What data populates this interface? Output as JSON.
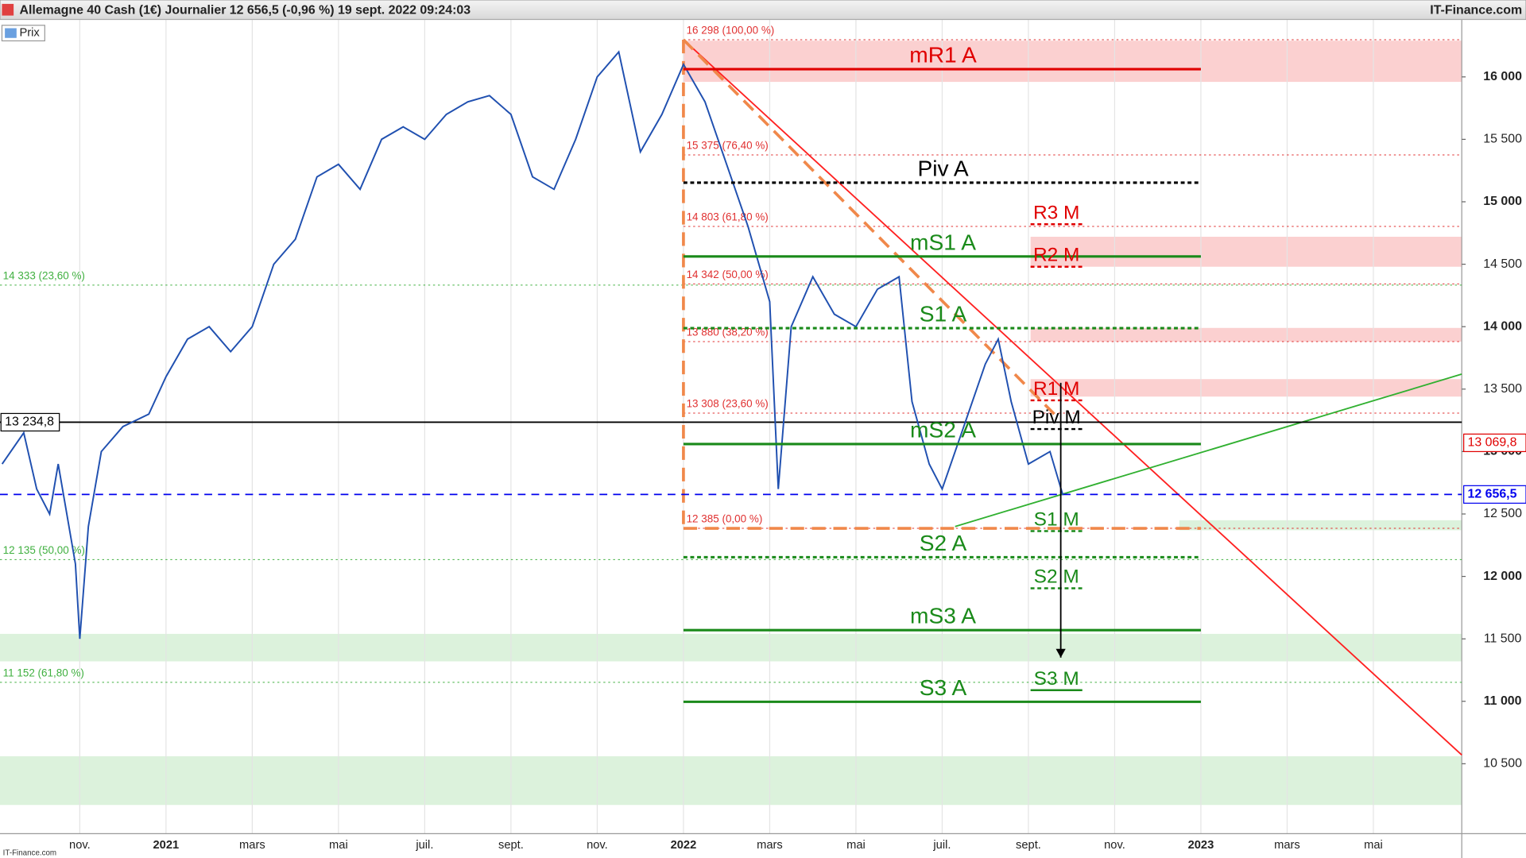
{
  "chart_data": {
    "type": "line",
    "title": "Allemagne 40 Cash (1€) Journalier 12 656,5 (-0,96 %) 19 sept. 2022 09:24:03",
    "source": "IT-Finance.com",
    "footer": "IT-Finance.com",
    "xlim": [
      -0.85,
      33.05
    ],
    "ylim": [
      9940,
      16460
    ],
    "xgrid": true,
    "xticks": [
      {
        "value": 1,
        "label": "nov."
      },
      {
        "value": 3,
        "label": "2021"
      },
      {
        "value": 5,
        "label": "mars"
      },
      {
        "value": 7,
        "label": "mai"
      },
      {
        "value": 9,
        "label": "juil."
      },
      {
        "value": 11,
        "label": "sept."
      },
      {
        "value": 13,
        "label": "nov."
      },
      {
        "value": 15,
        "label": "2022"
      },
      {
        "value": 17,
        "label": "mars"
      },
      {
        "value": 19,
        "label": "mai"
      },
      {
        "value": 21,
        "label": "juil."
      },
      {
        "value": 23,
        "label": "sept."
      },
      {
        "value": 25,
        "label": "nov."
      },
      {
        "value": 27,
        "label": "2023"
      },
      {
        "value": 29,
        "label": "mars"
      },
      {
        "value": 31,
        "label": "mai"
      }
    ],
    "yticks": [
      {
        "value": 10500,
        "label": "10 500"
      },
      {
        "value": 11000,
        "label": "11 000"
      },
      {
        "value": 11500,
        "label": "11 500"
      },
      {
        "value": 12000,
        "label": "12 000"
      },
      {
        "value": 12500,
        "label": "12 500"
      },
      {
        "value": 13000,
        "label": "13 000"
      },
      {
        "value": 13500,
        "label": "13 500"
      },
      {
        "value": 14000,
        "label": "14 000"
      },
      {
        "value": 14500,
        "label": "14 500"
      },
      {
        "value": 15000,
        "label": "15 000"
      },
      {
        "value": 15500,
        "label": "15 500"
      },
      {
        "value": 16000,
        "label": "16 000"
      }
    ],
    "series": [
      {
        "name": "Prix",
        "color": "#2050b0",
        "x": [
          -0.8,
          -0.3,
          0,
          0.3,
          0.5,
          0.9,
          1.0,
          1.2,
          1.5,
          2.0,
          2.6,
          3.0,
          3.5,
          4.0,
          4.5,
          5.0,
          5.5,
          6.0,
          6.5,
          7.0,
          7.5,
          8.0,
          8.5,
          9.0,
          9.5,
          10.0,
          10.5,
          11.0,
          11.5,
          12.0,
          12.5,
          13.0,
          13.5,
          14.0,
          14.5,
          15.0,
          15.5,
          16.0,
          16.5,
          17.0,
          17.2,
          17.5,
          18.0,
          18.5,
          19.0,
          19.5,
          20.0,
          20.3,
          20.7,
          21.0,
          21.5,
          22.0,
          22.3,
          22.6,
          23.0,
          23.5,
          23.8
        ],
        "values": [
          12900,
          13150,
          12700,
          12500,
          12900,
          12100,
          11500,
          12400,
          13000,
          13200,
          13300,
          13600,
          13900,
          14000,
          13800,
          14000,
          14500,
          14700,
          15200,
          15300,
          15100,
          15500,
          15600,
          15500,
          15700,
          15800,
          15850,
          15700,
          15200,
          15100,
          15500,
          16000,
          16200,
          15400,
          15700,
          16100,
          15800,
          15300,
          14800,
          14200,
          12700,
          14000,
          14400,
          14100,
          14000,
          14300,
          14400,
          13400,
          12900,
          12700,
          13200,
          13700,
          13900,
          13400,
          12900,
          13000,
          12650
        ]
      }
    ],
    "zones": [
      {
        "color": "#fbd0d0",
        "range": [
          15960,
          16290
        ],
        "x": [
          15,
          33.05
        ]
      },
      {
        "color": "#fbd0d0",
        "range": [
          14480,
          14720
        ],
        "x": [
          23.05,
          33.05
        ]
      },
      {
        "color": "#fbd0d0",
        "range": [
          13880,
          13990
        ],
        "x": [
          23.05,
          33.05
        ]
      },
      {
        "color": "#fbd0d0",
        "range": [
          13440,
          13580
        ],
        "x": [
          23.05,
          33.05
        ]
      },
      {
        "color": "#dcf2dc",
        "range": [
          12370,
          12450
        ],
        "x": [
          26.5,
          33.05
        ]
      },
      {
        "color": "#dcf2dc",
        "range": [
          11320,
          11540
        ],
        "x": [
          -0.85,
          33.05
        ]
      },
      {
        "color": "#dcf2dc",
        "range": [
          10170,
          10560
        ],
        "x": [
          -0.85,
          33.05
        ]
      }
    ],
    "fibs": [
      {
        "value": 16298,
        "label": "16 298 (100,00 %)",
        "color": "#e03030",
        "x": [
          15,
          33.05
        ]
      },
      {
        "value": 15375,
        "label": "15 375 (76,40 %)",
        "color": "#e03030",
        "x": [
          15,
          33.05
        ]
      },
      {
        "value": 14803,
        "label": "14 803 (61,80 %)",
        "color": "#e03030",
        "x": [
          15,
          33.05
        ]
      },
      {
        "value": 14342,
        "label": "14 342 (50,00 %)",
        "color": "#e03030",
        "x": [
          15,
          33.05
        ]
      },
      {
        "value": 13880,
        "label": "13 880 (38,20 %)",
        "color": "#e03030",
        "x": [
          15,
          33.05
        ]
      },
      {
        "value": 13308,
        "label": "13 308 (23,60 %)",
        "color": "#e03030",
        "x": [
          15,
          33.05
        ]
      },
      {
        "value": 12385,
        "label": "12 385 (0,00 %)",
        "color": "#e03030",
        "x": [
          15,
          33.05
        ]
      },
      {
        "value": 14333,
        "label": "14 333 (23,60 %)",
        "color": "#40b040",
        "x": [
          -0.85,
          33.05
        ]
      },
      {
        "value": 12135,
        "label": "12 135 (50,00 %)",
        "color": "#40b040",
        "x": [
          -0.85,
          33.05
        ]
      },
      {
        "value": 11152,
        "label": "11 152 (61,80 %)",
        "color": "#40b040",
        "x": [
          -0.85,
          33.05
        ]
      }
    ],
    "levels": [
      {
        "name": "mR1 A",
        "value": 16062,
        "color": "#e00000",
        "dash": "",
        "x": [
          15,
          27
        ]
      },
      {
        "name": "Piv A",
        "value": 15153,
        "color": "#000000",
        "dash": "4 3",
        "x": [
          15,
          27
        ]
      },
      {
        "name": "R3 M",
        "value": 14820,
        "color": "#e00000",
        "dash": "4 3",
        "x": [
          23.05,
          24.25
        ]
      },
      {
        "name": "mS1 A",
        "value": 14562,
        "color": "#1a8a1a",
        "dash": "",
        "x": [
          15,
          27
        ]
      },
      {
        "name": "R2 M",
        "value": 14480,
        "color": "#e00000",
        "dash": "4 3",
        "x": [
          23.05,
          24.25
        ]
      },
      {
        "name": "S1 A",
        "value": 13988,
        "color": "#1a8a1a",
        "dash": "4 3",
        "x": [
          15,
          27
        ]
      },
      {
        "name": "R1 M",
        "value": 13410,
        "color": "#e00000",
        "dash": "4 3",
        "x": [
          23.05,
          24.25
        ]
      },
      {
        "name": "Piv M",
        "value": 13180,
        "color": "#000000",
        "dash": "4 3",
        "x": [
          23.05,
          24.25
        ]
      },
      {
        "name": "mS2 A",
        "value": 13060,
        "color": "#1a8a1a",
        "dash": "",
        "x": [
          15,
          27
        ]
      },
      {
        "name": "S1 M",
        "value": 12363,
        "color": "#1a8a1a",
        "dash": "4 3",
        "x": [
          23.05,
          24.25
        ]
      },
      {
        "name": "S2 A",
        "value": 12154,
        "color": "#1a8a1a",
        "dash": "4 3",
        "x": [
          15,
          27
        ]
      },
      {
        "name": "S2 M",
        "value": 11905,
        "color": "#1a8a1a",
        "dash": "4 3",
        "x": [
          23.05,
          24.25
        ]
      },
      {
        "name": "mS3 A",
        "value": 11570,
        "color": "#1a8a1a",
        "dash": "",
        "x": [
          15,
          27
        ]
      },
      {
        "name": "S3 M",
        "value": 11089,
        "color": "#1a8a1a",
        "dash": "",
        "x": [
          23.05,
          24.25
        ]
      },
      {
        "name": "S3 A",
        "value": 10996,
        "color": "#1a8a1a",
        "dash": "",
        "x": [
          15,
          27
        ]
      }
    ],
    "trendlines": [
      {
        "color": "#ff2020",
        "dash": "",
        "x": [
          15,
          33.05
        ],
        "y": [
          16298,
          10570
        ]
      },
      {
        "color": "#f0884a",
        "dash": "14 8",
        "x": [
          15,
          23.6
        ],
        "y": [
          16298,
          13300
        ]
      },
      {
        "color": "#f0884a",
        "dash": "14 8",
        "x": [
          15,
          15
        ],
        "y": [
          16298,
          12385
        ]
      },
      {
        "color": "#f0884a",
        "dash": "14 8",
        "x": [
          15,
          27
        ],
        "y": [
          12385,
          12385
        ]
      },
      {
        "color": "#30b030",
        "dash": "",
        "x": [
          21.3,
          33.05
        ],
        "y": [
          12400,
          13620
        ]
      },
      {
        "color": "#0000ee",
        "dash": "8 6",
        "x": [
          -0.85,
          33.05
        ],
        "y": [
          12656.5,
          12656.5
        ]
      },
      {
        "color": "#000000",
        "dash": "",
        "x": [
          -0.85,
          33.05
        ],
        "y": [
          13234.8,
          13234.8
        ]
      }
    ],
    "arrow": {
      "x": 23.75,
      "y": [
        13550,
        11350
      ]
    },
    "price_tags": [
      {
        "label": "13 069,8",
        "value": 13069.8,
        "color": "#e00000",
        "side": "right"
      },
      {
        "label": "12 656,5",
        "value": 12656.5,
        "color": "#0000ee",
        "side": "right"
      },
      {
        "label": "13 234,8",
        "value": 13234.8,
        "color": "#000000",
        "side": "left"
      }
    ]
  }
}
